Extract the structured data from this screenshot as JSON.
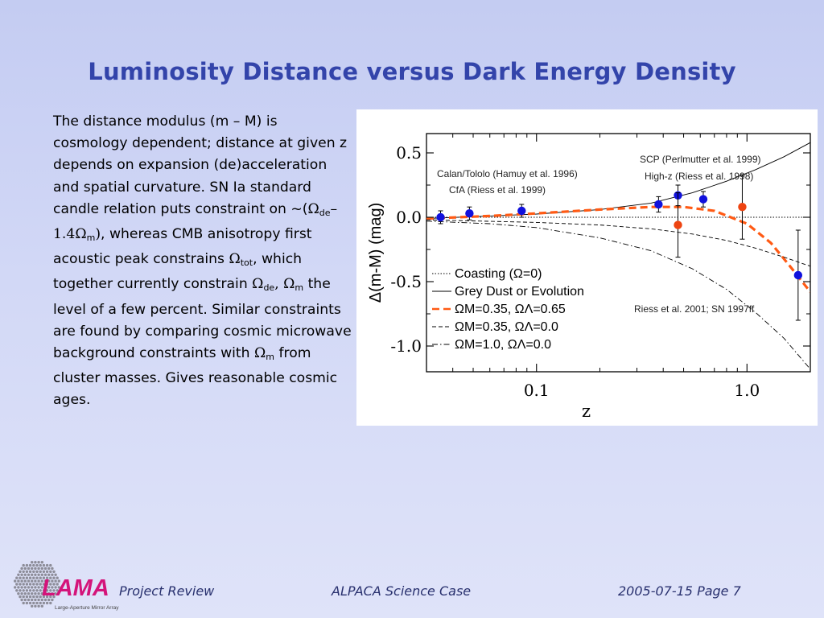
{
  "slide": {
    "title": "Luminosity Distance versus Dark Energy Density",
    "body": {
      "p1": "The distance modulus (m – M) is cosmology dependent; distance at given z depends on expansion (de)acceleration and spatial curvature.  SN Ia standard candle relation puts constraint on ~(",
      "omega": "Ω",
      "de": "de",
      "minus_coef": "– 1.4",
      "m": "m",
      "close": ")",
      "p2": ", whereas CMB anisotropy first acoustic peak constrains ",
      "tot": "tot",
      "p3": ", which together currently constrain ",
      "comma": ", ",
      "p4": " the level of a few percent.  Similar constraints are found by comparing cosmic microwave background constraints with ",
      "p5": " from cluster masses.  Gives reasonable cosmic ages."
    }
  },
  "chart_data": {
    "type": "line",
    "xlabel": "z",
    "ylabel": "Δ(m-M) (mag)",
    "xscale": "log",
    "xlim": [
      0.03,
      2.0
    ],
    "ylim": [
      -1.2,
      0.65
    ],
    "xticks": [
      {
        "label": "0.1",
        "value": 0.1
      },
      {
        "label": "1.0",
        "value": 1.0
      }
    ],
    "yticks": [
      {
        "label": "0.5",
        "value": 0.5
      },
      {
        "label": "0.0",
        "value": 0.0
      },
      {
        "label": "-0.5",
        "value": -0.5
      },
      {
        "label": "-1.0",
        "value": -1.0
      }
    ],
    "annotations": [
      {
        "text": "SCP (Perlmutter et al. 1999)"
      },
      {
        "text": "High-z (Riess et al. 1998)"
      },
      {
        "text": "Calan/Tololo (Hamuy et al. 1996)"
      },
      {
        "text": "CfA (Riess et al. 1999)"
      },
      {
        "text": "Riess et al. 2001; SN 1997ff"
      }
    ],
    "legend": {
      "placement": "bottom-left",
      "entries": [
        {
          "label": "Coasting (Ω=0)",
          "style": "dotted"
        },
        {
          "label": "Grey Dust or Evolution",
          "style": "solid"
        },
        {
          "label": "ΩM=0.35, ΩΛ=0.65",
          "style": "orange-dashed"
        },
        {
          "label": "ΩM=0.35, ΩΛ=0.0",
          "style": "dashed"
        },
        {
          "label": "ΩM=1.0, ΩΛ=0.0",
          "style": "dash-dot"
        }
      ]
    },
    "series": [
      {
        "style": "dotted",
        "x": [
          0.03,
          0.1,
          0.3,
          1.0,
          2.0
        ],
        "y": [
          0,
          0,
          0,
          0,
          0
        ]
      },
      {
        "style": "solid",
        "x": [
          0.03,
          0.06,
          0.1,
          0.2,
          0.35,
          0.55,
          0.8,
          1.1,
          1.5,
          2.0
        ],
        "y": [
          -0.01,
          0.01,
          0.025,
          0.06,
          0.11,
          0.19,
          0.28,
          0.37,
          0.47,
          0.58
        ]
      },
      {
        "style": "orange-dashed",
        "x": [
          0.03,
          0.06,
          0.1,
          0.2,
          0.35,
          0.5,
          0.7,
          1.0,
          1.3,
          1.6,
          2.0
        ],
        "y": [
          -0.01,
          0.01,
          0.03,
          0.06,
          0.08,
          0.08,
          0.05,
          -0.05,
          -0.2,
          -0.38,
          -0.58
        ]
      },
      {
        "style": "dashed",
        "x": [
          0.03,
          0.1,
          0.2,
          0.35,
          0.55,
          0.8,
          1.1,
          1.5,
          2.0
        ],
        "y": [
          -0.02,
          -0.04,
          -0.06,
          -0.09,
          -0.13,
          -0.18,
          -0.24,
          -0.31,
          -0.38
        ]
      },
      {
        "style": "dash-dot",
        "x": [
          0.03,
          0.06,
          0.1,
          0.2,
          0.35,
          0.55,
          0.8,
          1.1,
          1.5,
          2.0
        ],
        "y": [
          -0.03,
          -0.05,
          -0.08,
          -0.16,
          -0.26,
          -0.4,
          -0.56,
          -0.74,
          -0.94,
          -1.18
        ]
      }
    ],
    "points": [
      {
        "z": 0.035,
        "y": 0.0,
        "err": 0.05,
        "color": "#1111dd"
      },
      {
        "z": 0.048,
        "y": 0.03,
        "err": 0.05,
        "color": "#1111dd"
      },
      {
        "z": 0.085,
        "y": 0.05,
        "err": 0.05,
        "color": "#1111dd"
      },
      {
        "z": 0.38,
        "y": 0.1,
        "err": 0.06,
        "color": "#1111dd"
      },
      {
        "z": 0.47,
        "y": 0.17,
        "err": 0.08,
        "color": "#1111dd"
      },
      {
        "z": 0.62,
        "y": 0.14,
        "err": 0.06,
        "color": "#1111dd"
      },
      {
        "z": 0.47,
        "y": -0.06,
        "err": 0.25,
        "color": "#ee4411"
      },
      {
        "z": 0.95,
        "y": 0.08,
        "err": 0.25,
        "color": "#ee4411"
      },
      {
        "z": 1.75,
        "y": -0.45,
        "err": 0.35,
        "color": "#1111dd"
      }
    ]
  },
  "footer": {
    "logo_text": "LAMA",
    "logo_subtitle": "Large-Aperture Mirror Array",
    "project": "Project Review",
    "case": "ALPACA Science Case",
    "date_page": "2005-07-15  Page 7"
  }
}
